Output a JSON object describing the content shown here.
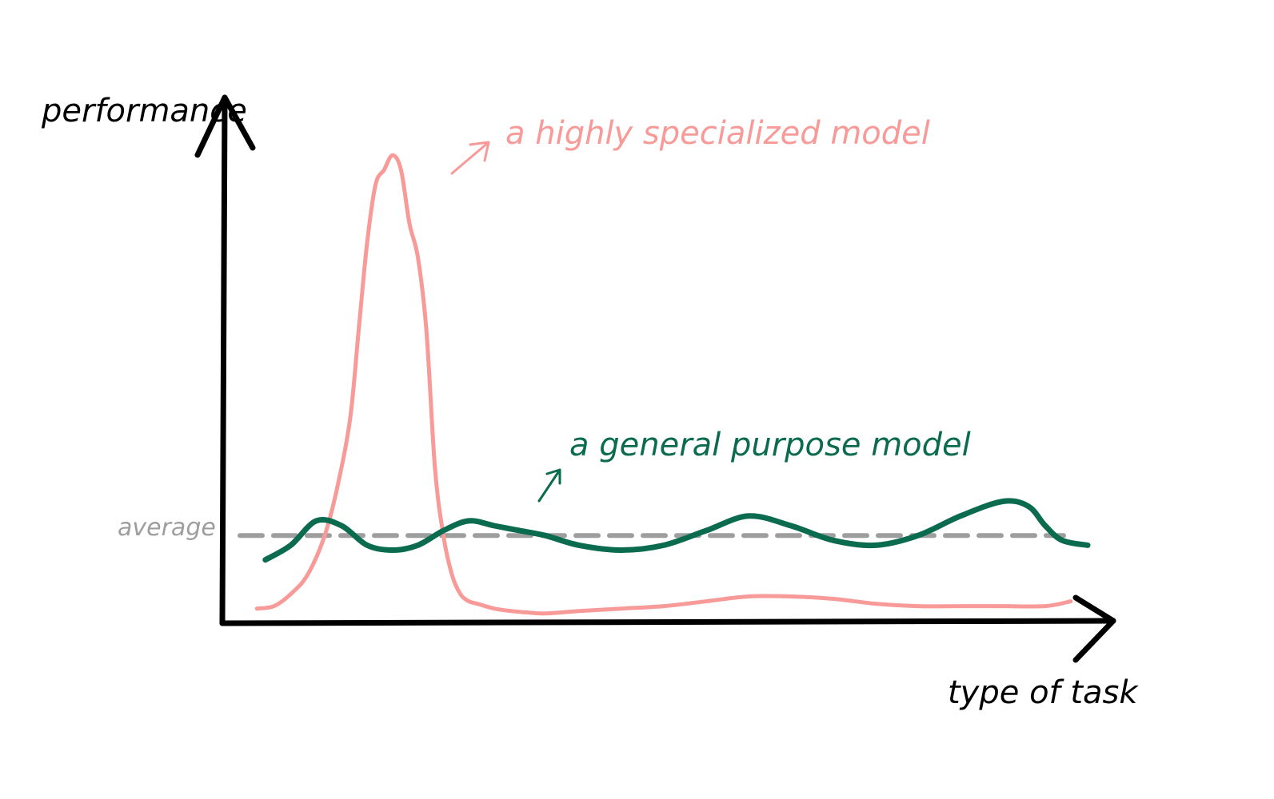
{
  "chart_data": {
    "type": "line",
    "title": "",
    "xlabel": "type of task",
    "ylabel": "performance",
    "xlim": [
      0,
      100
    ],
    "ylim": [
      0,
      100
    ],
    "grid": false,
    "axis_ticks": false,
    "reference_lines": [
      {
        "label": "average",
        "y": 18,
        "style": "dashed",
        "color": "#9e9e9e"
      }
    ],
    "series": [
      {
        "name": "a highly specialized model",
        "color": "#f79a98",
        "x": [
          2,
          4,
          6,
          8,
          10,
          11.5,
          13,
          14,
          15,
          16,
          17,
          18,
          19,
          20,
          21,
          22,
          23,
          24,
          25,
          26,
          27,
          28,
          30,
          32,
          34,
          36,
          40,
          45,
          50,
          55,
          60,
          65,
          70,
          75,
          80,
          85,
          90,
          95,
          98
        ],
        "y": [
          3,
          3.5,
          6,
          10,
          18,
          28,
          42,
          60,
          78,
          90,
          93,
          96,
          93,
          82,
          75,
          60,
          32,
          18,
          10,
          6,
          4.5,
          4,
          3,
          2.5,
          2.2,
          2,
          2.5,
          3,
          3.5,
          4.5,
          5.5,
          5.5,
          5,
          4,
          3.5,
          3.5,
          3.5,
          3.5,
          4.5
        ]
      },
      {
        "name": "a general purpose model",
        "color": "#0b6b4f",
        "x": [
          3,
          6,
          9,
          12,
          15,
          18,
          21,
          24,
          27,
          30,
          33,
          36,
          40,
          45,
          50,
          55,
          60,
          65,
          70,
          75,
          80,
          85,
          90,
          93,
          95,
          97,
          100
        ],
        "y": [
          13,
          16,
          21,
          20,
          16,
          15,
          16,
          19,
          21,
          20,
          19,
          18,
          16,
          15,
          16,
          19,
          22,
          20,
          17,
          16,
          18,
          22,
          25,
          24,
          20,
          17,
          16
        ]
      }
    ]
  }
}
